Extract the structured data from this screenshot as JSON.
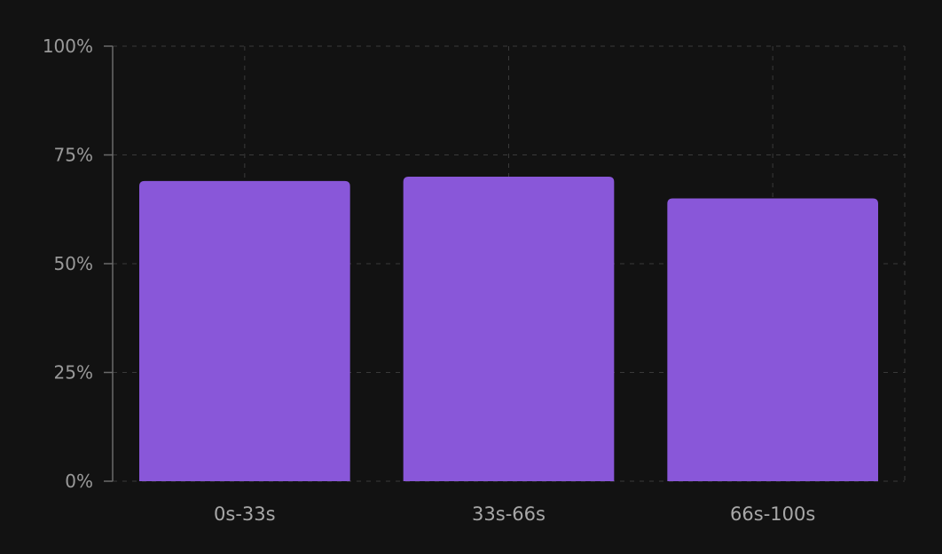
{
  "chart_data": {
    "type": "bar",
    "categories": [
      "0s-33s",
      "33s-66s",
      "66s-100s"
    ],
    "values": [
      69,
      70,
      65
    ],
    "ylim": [
      0,
      100
    ],
    "yticks": [
      0,
      25,
      50,
      75,
      100
    ],
    "ytick_labels": [
      "0%",
      "25%",
      "50%",
      "75%",
      "100%"
    ],
    "grid": true,
    "title": "",
    "xlabel": "",
    "ylabel": "",
    "colors": {
      "bar": "#8957d9",
      "background": "#121212",
      "grid": "#3a3a3a",
      "axis": "#6a6a6a",
      "text": "#9a9a9a"
    }
  }
}
